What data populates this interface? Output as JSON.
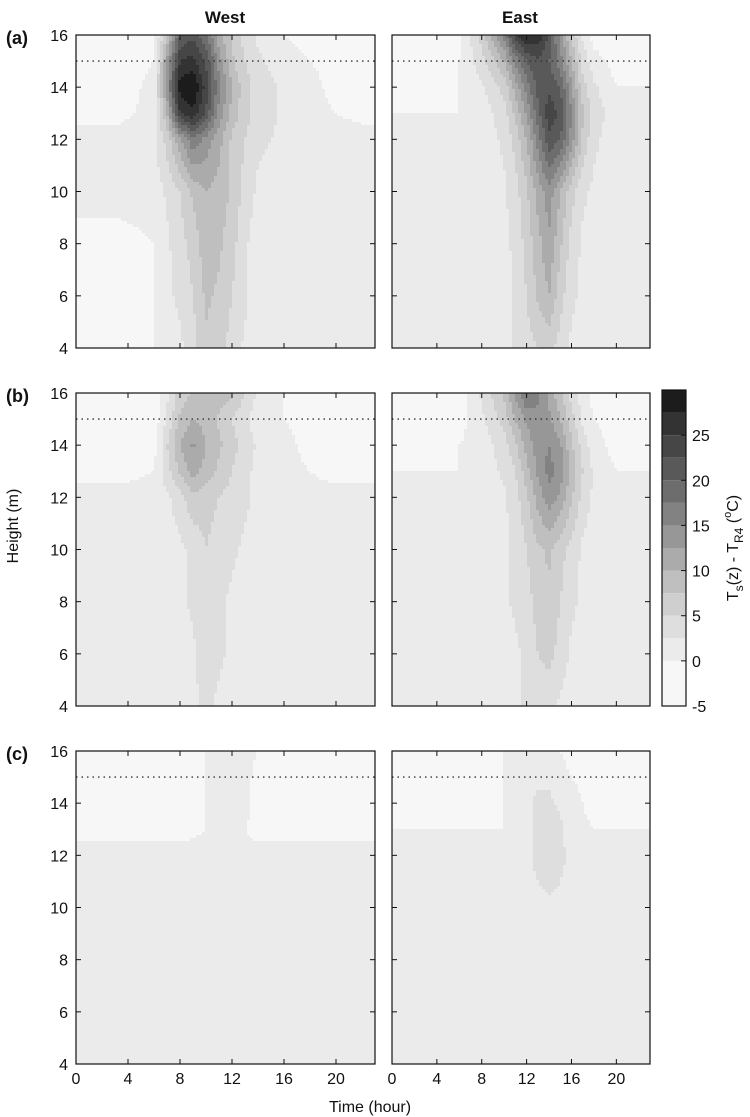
{
  "figure": {
    "column_titles": [
      "West",
      "East"
    ],
    "row_labels": [
      "(a)",
      "(b)",
      "(c)"
    ],
    "xlabel": "Time (hour)",
    "ylabel": "Height (m)",
    "colorbar": {
      "label": "T_s(z) - T_R4 (°C)",
      "ticks": [
        25,
        20,
        15,
        10,
        5,
        0,
        -5
      ],
      "range": [
        -5,
        30
      ],
      "levels": [
        -5,
        0,
        2.5,
        5,
        7.5,
        10,
        12.5,
        15,
        17.5,
        20,
        22.5,
        25,
        27.5
      ],
      "colors": [
        "#f7f7f7",
        "#ebebeb",
        "#dedede",
        "#cfcfcf",
        "#bfbfbf",
        "#ababab",
        "#979797",
        "#828282",
        "#6d6d6d",
        "#595959",
        "#464646",
        "#333333",
        "#1c1c1c"
      ]
    }
  },
  "chart_data": [
    {
      "type": "heatmap",
      "panel": "(a) West",
      "title": "West",
      "x": [
        0,
        3,
        6,
        7,
        8,
        9,
        10,
        11,
        12,
        13,
        14,
        16,
        18,
        20,
        23
      ],
      "y": [
        4,
        6,
        8,
        10,
        12,
        13,
        14,
        15,
        16
      ],
      "values": [
        [
          -1,
          -1,
          0,
          1,
          2,
          4,
          7,
          6,
          4,
          2,
          1,
          1,
          1,
          1,
          1
        ],
        [
          -1,
          -1,
          0,
          2,
          3,
          5,
          8,
          7,
          5,
          3,
          1,
          1,
          1,
          1,
          1
        ],
        [
          -1,
          -1,
          0,
          2,
          4,
          6,
          9,
          8,
          6,
          3,
          1,
          1,
          1,
          1,
          1
        ],
        [
          1,
          1,
          1,
          3,
          5,
          8,
          10,
          9,
          7,
          4,
          2,
          1,
          1,
          1,
          1
        ],
        [
          1,
          1,
          2,
          6,
          12,
          17,
          14,
          11,
          7,
          5,
          3,
          2,
          1,
          1,
          1
        ],
        [
          -1,
          -1,
          1,
          10,
          25,
          27,
          22,
          14,
          9,
          6,
          4,
          2,
          1,
          0,
          -1
        ],
        [
          -2,
          -2,
          1,
          14,
          29,
          30,
          24,
          16,
          10,
          6,
          4,
          2,
          1,
          -1,
          -2
        ],
        [
          -2,
          -2,
          0,
          13,
          25,
          26,
          22,
          14,
          8,
          5,
          3,
          1,
          0,
          -1,
          -2
        ],
        [
          -2,
          -2,
          -1,
          8,
          20,
          22,
          18,
          11,
          7,
          4,
          2,
          0,
          -1,
          -2,
          -2
        ]
      ],
      "xlim": [
        0,
        23
      ],
      "ylim": [
        4,
        16
      ],
      "hline_y": 15,
      "xticks": [
        0,
        4,
        8,
        12,
        16,
        20
      ],
      "yticks": [
        4,
        6,
        8,
        10,
        12,
        14,
        16
      ]
    },
    {
      "type": "heatmap",
      "panel": "(a) East",
      "title": "East",
      "x": [
        0,
        3,
        6,
        8,
        10,
        11,
        12,
        13,
        14,
        15,
        16,
        17,
        18,
        20,
        23
      ],
      "y": [
        4,
        6,
        8,
        10,
        12,
        13,
        14,
        15,
        16
      ],
      "values": [
        [
          1,
          1,
          1,
          1,
          1,
          3,
          4,
          5,
          6,
          4,
          2,
          1,
          1,
          1,
          1
        ],
        [
          1,
          1,
          1,
          1,
          1,
          3,
          5,
          8,
          10,
          6,
          3,
          2,
          1,
          1,
          1
        ],
        [
          1,
          1,
          1,
          1,
          2,
          3,
          6,
          9,
          12,
          8,
          4,
          2,
          1,
          1,
          1
        ],
        [
          1,
          1,
          1,
          1,
          2,
          4,
          7,
          11,
          14,
          10,
          6,
          3,
          2,
          1,
          1
        ],
        [
          1,
          1,
          1,
          1,
          3,
          6,
          10,
          16,
          22,
          20,
          14,
          7,
          3,
          1,
          1
        ],
        [
          0,
          0,
          0,
          1,
          4,
          8,
          13,
          19,
          24,
          22,
          15,
          8,
          4,
          1,
          1
        ],
        [
          -1,
          -1,
          0,
          2,
          6,
          11,
          16,
          21,
          22,
          20,
          13,
          6,
          3,
          0,
          0
        ],
        [
          -1,
          -1,
          0,
          4,
          10,
          16,
          20,
          22,
          20,
          16,
          10,
          4,
          1,
          -1,
          -1
        ],
        [
          -2,
          -2,
          -1,
          6,
          16,
          24,
          28,
          27,
          22,
          14,
          7,
          2,
          -1,
          -2,
          -2
        ]
      ],
      "xlim": [
        0,
        23
      ],
      "ylim": [
        4,
        16
      ],
      "hline_y": 15,
      "xticks": [
        0,
        4,
        8,
        12,
        16,
        20
      ],
      "yticks": [
        4,
        6,
        8,
        10,
        12,
        14,
        16
      ]
    },
    {
      "type": "heatmap",
      "panel": "(b) West",
      "title": "",
      "x": [
        0,
        3,
        6,
        7,
        8,
        9,
        10,
        11,
        12,
        13,
        14,
        16,
        18,
        20,
        23
      ],
      "y": [
        4,
        6,
        8,
        10,
        12,
        13,
        14,
        15,
        16
      ],
      "values": [
        [
          1,
          1,
          1,
          1,
          1,
          2,
          3,
          2,
          1,
          1,
          1,
          1,
          1,
          1,
          1
        ],
        [
          1,
          1,
          1,
          1,
          1,
          2,
          4,
          3,
          2,
          1,
          1,
          1,
          1,
          1,
          1
        ],
        [
          1,
          1,
          1,
          1,
          2,
          3,
          4,
          3,
          2,
          1,
          1,
          1,
          1,
          1,
          1
        ],
        [
          1,
          1,
          1,
          1,
          2,
          3,
          5,
          4,
          3,
          2,
          1,
          1,
          1,
          1,
          1
        ],
        [
          1,
          1,
          1,
          2,
          4,
          7,
          6,
          5,
          4,
          3,
          2,
          1,
          1,
          1,
          1
        ],
        [
          -1,
          -1,
          0,
          4,
          8,
          11,
          9,
          7,
          5,
          3,
          2,
          1,
          0,
          -1,
          -1
        ],
        [
          -2,
          -2,
          -1,
          5,
          10,
          13,
          10,
          8,
          6,
          4,
          2,
          1,
          -1,
          -2,
          -2
        ],
        [
          -3,
          -3,
          -2,
          3,
          8,
          10,
          9,
          7,
          5,
          3,
          1,
          0,
          -1,
          -2,
          -3
        ],
        [
          -3,
          -3,
          -2,
          2,
          6,
          8,
          8,
          9,
          8,
          5,
          2,
          0,
          -1,
          -2,
          -3
        ]
      ],
      "xlim": [
        0,
        23
      ],
      "ylim": [
        4,
        16
      ],
      "hline_y": 15,
      "xticks": [
        0,
        4,
        8,
        12,
        16,
        20
      ],
      "yticks": [
        4,
        6,
        8,
        10,
        12,
        14,
        16
      ]
    },
    {
      "type": "heatmap",
      "panel": "(b) East",
      "title": "",
      "x": [
        0,
        3,
        6,
        8,
        10,
        11,
        12,
        13,
        14,
        15,
        16,
        17,
        18,
        20,
        23
      ],
      "y": [
        4,
        6,
        8,
        10,
        12,
        13,
        14,
        15,
        16
      ],
      "values": [
        [
          1,
          1,
          1,
          1,
          1,
          2,
          3,
          3,
          3,
          2,
          1,
          1,
          1,
          1,
          1
        ],
        [
          1,
          1,
          1,
          1,
          1,
          2,
          3,
          5,
          6,
          4,
          2,
          2,
          1,
          1,
          1
        ],
        [
          1,
          1,
          1,
          1,
          2,
          3,
          4,
          6,
          7,
          5,
          3,
          2,
          1,
          1,
          1
        ],
        [
          1,
          1,
          1,
          1,
          2,
          3,
          5,
          7,
          8,
          6,
          4,
          2,
          1,
          1,
          1
        ],
        [
          1,
          1,
          1,
          1,
          2,
          4,
          7,
          11,
          14,
          12,
          8,
          4,
          2,
          1,
          1
        ],
        [
          0,
          0,
          0,
          1,
          3,
          5,
          9,
          13,
          16,
          14,
          9,
          5,
          2,
          0,
          0
        ],
        [
          -1,
          -1,
          0,
          1,
          4,
          7,
          11,
          14,
          15,
          13,
          8,
          4,
          1,
          -1,
          -1
        ],
        [
          -2,
          -2,
          -1,
          2,
          6,
          10,
          13,
          14,
          13,
          10,
          6,
          2,
          0,
          -1,
          -2
        ],
        [
          -3,
          -3,
          -2,
          3,
          8,
          13,
          18,
          16,
          12,
          8,
          4,
          1,
          -1,
          -2,
          -3
        ]
      ],
      "xlim": [
        0,
        23
      ],
      "ylim": [
        4,
        16
      ],
      "hline_y": 15,
      "xticks": [
        0,
        4,
        8,
        12,
        16,
        20
      ],
      "yticks": [
        4,
        6,
        8,
        10,
        12,
        14,
        16
      ]
    },
    {
      "type": "heatmap",
      "panel": "(c) West",
      "title": "",
      "x": [
        0,
        3,
        6,
        8,
        10,
        11,
        12,
        13,
        14,
        16,
        18,
        20,
        23
      ],
      "y": [
        4,
        6,
        8,
        10,
        12,
        13,
        14,
        15,
        16
      ],
      "values": [
        [
          1,
          1,
          1,
          1,
          1,
          1,
          1,
          1,
          1,
          1,
          1,
          1,
          1
        ],
        [
          1,
          1,
          1,
          1,
          1,
          1,
          1,
          1,
          1,
          1,
          1,
          1,
          1
        ],
        [
          1,
          1,
          1,
          1,
          1,
          1,
          1,
          1,
          1,
          1,
          1,
          1,
          1
        ],
        [
          1,
          1,
          1,
          1,
          1,
          1,
          1,
          1,
          1,
          1,
          1,
          1,
          1
        ],
        [
          1,
          1,
          1,
          1,
          1,
          1,
          1,
          1,
          1,
          1,
          1,
          1,
          1
        ],
        [
          -1,
          -1,
          -1,
          -1,
          0,
          1,
          1,
          0,
          -1,
          -1,
          -1,
          -1,
          -1
        ],
        [
          -2,
          -2,
          -2,
          -1,
          0,
          1,
          2,
          1,
          -1,
          -2,
          -2,
          -2,
          -2
        ],
        [
          -3,
          -2,
          -2,
          -1,
          0,
          1,
          2,
          1,
          -1,
          -2,
          -3,
          -3,
          -3
        ],
        [
          -3,
          -3,
          -2,
          -1,
          0,
          1,
          2,
          1,
          0,
          -2,
          -3,
          -3,
          -3
        ]
      ],
      "xlim": [
        0,
        23
      ],
      "ylim": [
        4,
        16
      ],
      "hline_y": 15,
      "xticks": [
        0,
        4,
        8,
        12,
        16,
        20
      ],
      "yticks": [
        4,
        6,
        8,
        10,
        12,
        14,
        16
      ]
    },
    {
      "type": "heatmap",
      "panel": "(c) East",
      "title": "",
      "x": [
        0,
        3,
        6,
        8,
        10,
        11,
        12,
        13,
        14,
        15,
        16,
        18,
        20,
        23
      ],
      "y": [
        4,
        6,
        8,
        10,
        12,
        13,
        14,
        15,
        16
      ],
      "values": [
        [
          2,
          2,
          2,
          2,
          2,
          2,
          2,
          2,
          2,
          2,
          2,
          2,
          2,
          2
        ],
        [
          2,
          2,
          2,
          2,
          2,
          2,
          2,
          2,
          2,
          2,
          2,
          2,
          2,
          2
        ],
        [
          2,
          2,
          2,
          2,
          2,
          2,
          2,
          2,
          2,
          2,
          2,
          2,
          2,
          2
        ],
        [
          2,
          2,
          2,
          2,
          2,
          2,
          2,
          2,
          2,
          2,
          2,
          2,
          2,
          2
        ],
        [
          1,
          1,
          1,
          1,
          1,
          1,
          2,
          3,
          4,
          3,
          2,
          1,
          1,
          1
        ],
        [
          0,
          0,
          0,
          0,
          0,
          1,
          2,
          3,
          4,
          3,
          1,
          0,
          0,
          0
        ],
        [
          -1,
          -1,
          -1,
          -1,
          0,
          1,
          2,
          3,
          3,
          2,
          1,
          -1,
          -1,
          -1
        ],
        [
          -2,
          -2,
          -2,
          -1,
          0,
          1,
          2,
          2,
          2,
          1,
          0,
          -1,
          -2,
          -2
        ],
        [
          -3,
          -3,
          -2,
          -1,
          0,
          1,
          1,
          1,
          1,
          0,
          -1,
          -2,
          -3,
          -3
        ]
      ],
      "xlim": [
        0,
        23
      ],
      "ylim": [
        4,
        16
      ],
      "hline_y": 15,
      "xticks": [
        0,
        4,
        8,
        12,
        16,
        20
      ],
      "yticks": [
        4,
        6,
        8,
        10,
        12,
        14,
        16
      ]
    }
  ]
}
